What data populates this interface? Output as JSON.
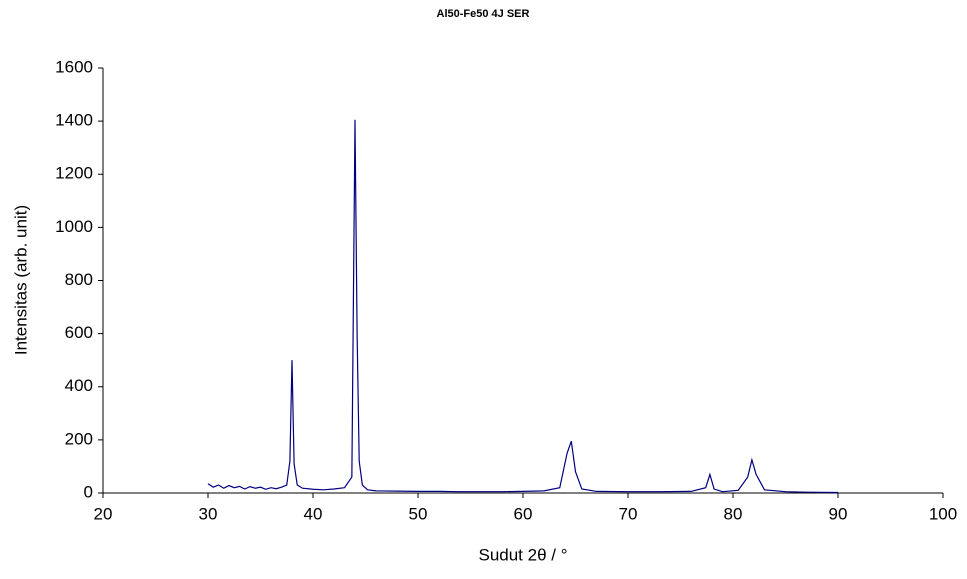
{
  "chart_data": {
    "type": "line",
    "title": "Al50-Fe50 4J SER",
    "x_label": "Sudut 2θ / °",
    "y_label": "Intensitas (arb. unit)",
    "xlim": [
      20,
      100
    ],
    "xticks": [
      20,
      30,
      40,
      50,
      60,
      70,
      80,
      90,
      100
    ],
    "ylim": [
      0,
      1600
    ],
    "yticks": [
      0,
      200,
      400,
      600,
      800,
      1000,
      1200,
      1400,
      1600
    ],
    "x": [
      30,
      30.5,
      31,
      31.5,
      32,
      32.5,
      33,
      33.5,
      34,
      34.5,
      35,
      35.5,
      36,
      36.5,
      37,
      37.5,
      37.8,
      38.0,
      38.2,
      38.5,
      39,
      40,
      41,
      42,
      43,
      43.7,
      44.0,
      44.2,
      44.4,
      44.7,
      45.2,
      46,
      48,
      50,
      52,
      54,
      56,
      58,
      60,
      62,
      63.5,
      64.2,
      64.6,
      65.0,
      65.6,
      67,
      70,
      73,
      76,
      77.4,
      77.8,
      78.2,
      79,
      80.5,
      81.4,
      81.8,
      82.2,
      83,
      85,
      87,
      90
    ],
    "series": [
      {
        "color": "#000080",
        "values": [
          35,
          22,
          30,
          18,
          28,
          20,
          25,
          15,
          24,
          18,
          22,
          14,
          20,
          16,
          22,
          30,
          120,
          500,
          110,
          30,
          18,
          14,
          12,
          15,
          20,
          60,
          1405,
          600,
          120,
          30,
          12,
          8,
          7,
          6,
          6,
          5,
          5,
          5,
          6,
          8,
          20,
          150,
          195,
          80,
          15,
          6,
          5,
          5,
          6,
          20,
          70,
          15,
          5,
          10,
          60,
          125,
          70,
          12,
          5,
          3,
          2
        ]
      }
    ]
  }
}
